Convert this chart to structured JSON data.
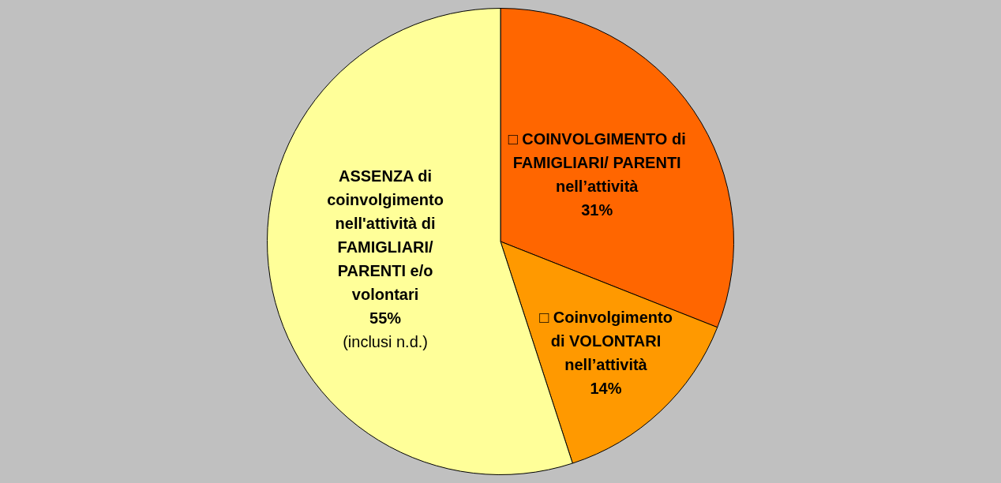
{
  "chart_data": {
    "type": "pie",
    "categories": [
      "□ COINVOLGIMENTO di FAMIGLIARI/ PARENTI nell’attività",
      "□ Coinvolgimento di VOLONTARI nell’attività",
      "ASSENZA di coinvolgimento nell'attività di FAMIGLIARI/ PARENTI e/o volontari"
    ],
    "values": [
      31,
      14,
      55
    ],
    "colors": [
      "#ff6600",
      "#ff9900",
      "#ffff99"
    ],
    "value_labels": [
      "31%",
      "14%",
      "55%"
    ],
    "annotations": [
      {
        "text": "(inclusi n.d.)",
        "x": "ASSENZA di coinvolgimento nell'attività di FAMIGLIARI/ PARENTI e/o volontari"
      }
    ],
    "legend": false
  }
}
